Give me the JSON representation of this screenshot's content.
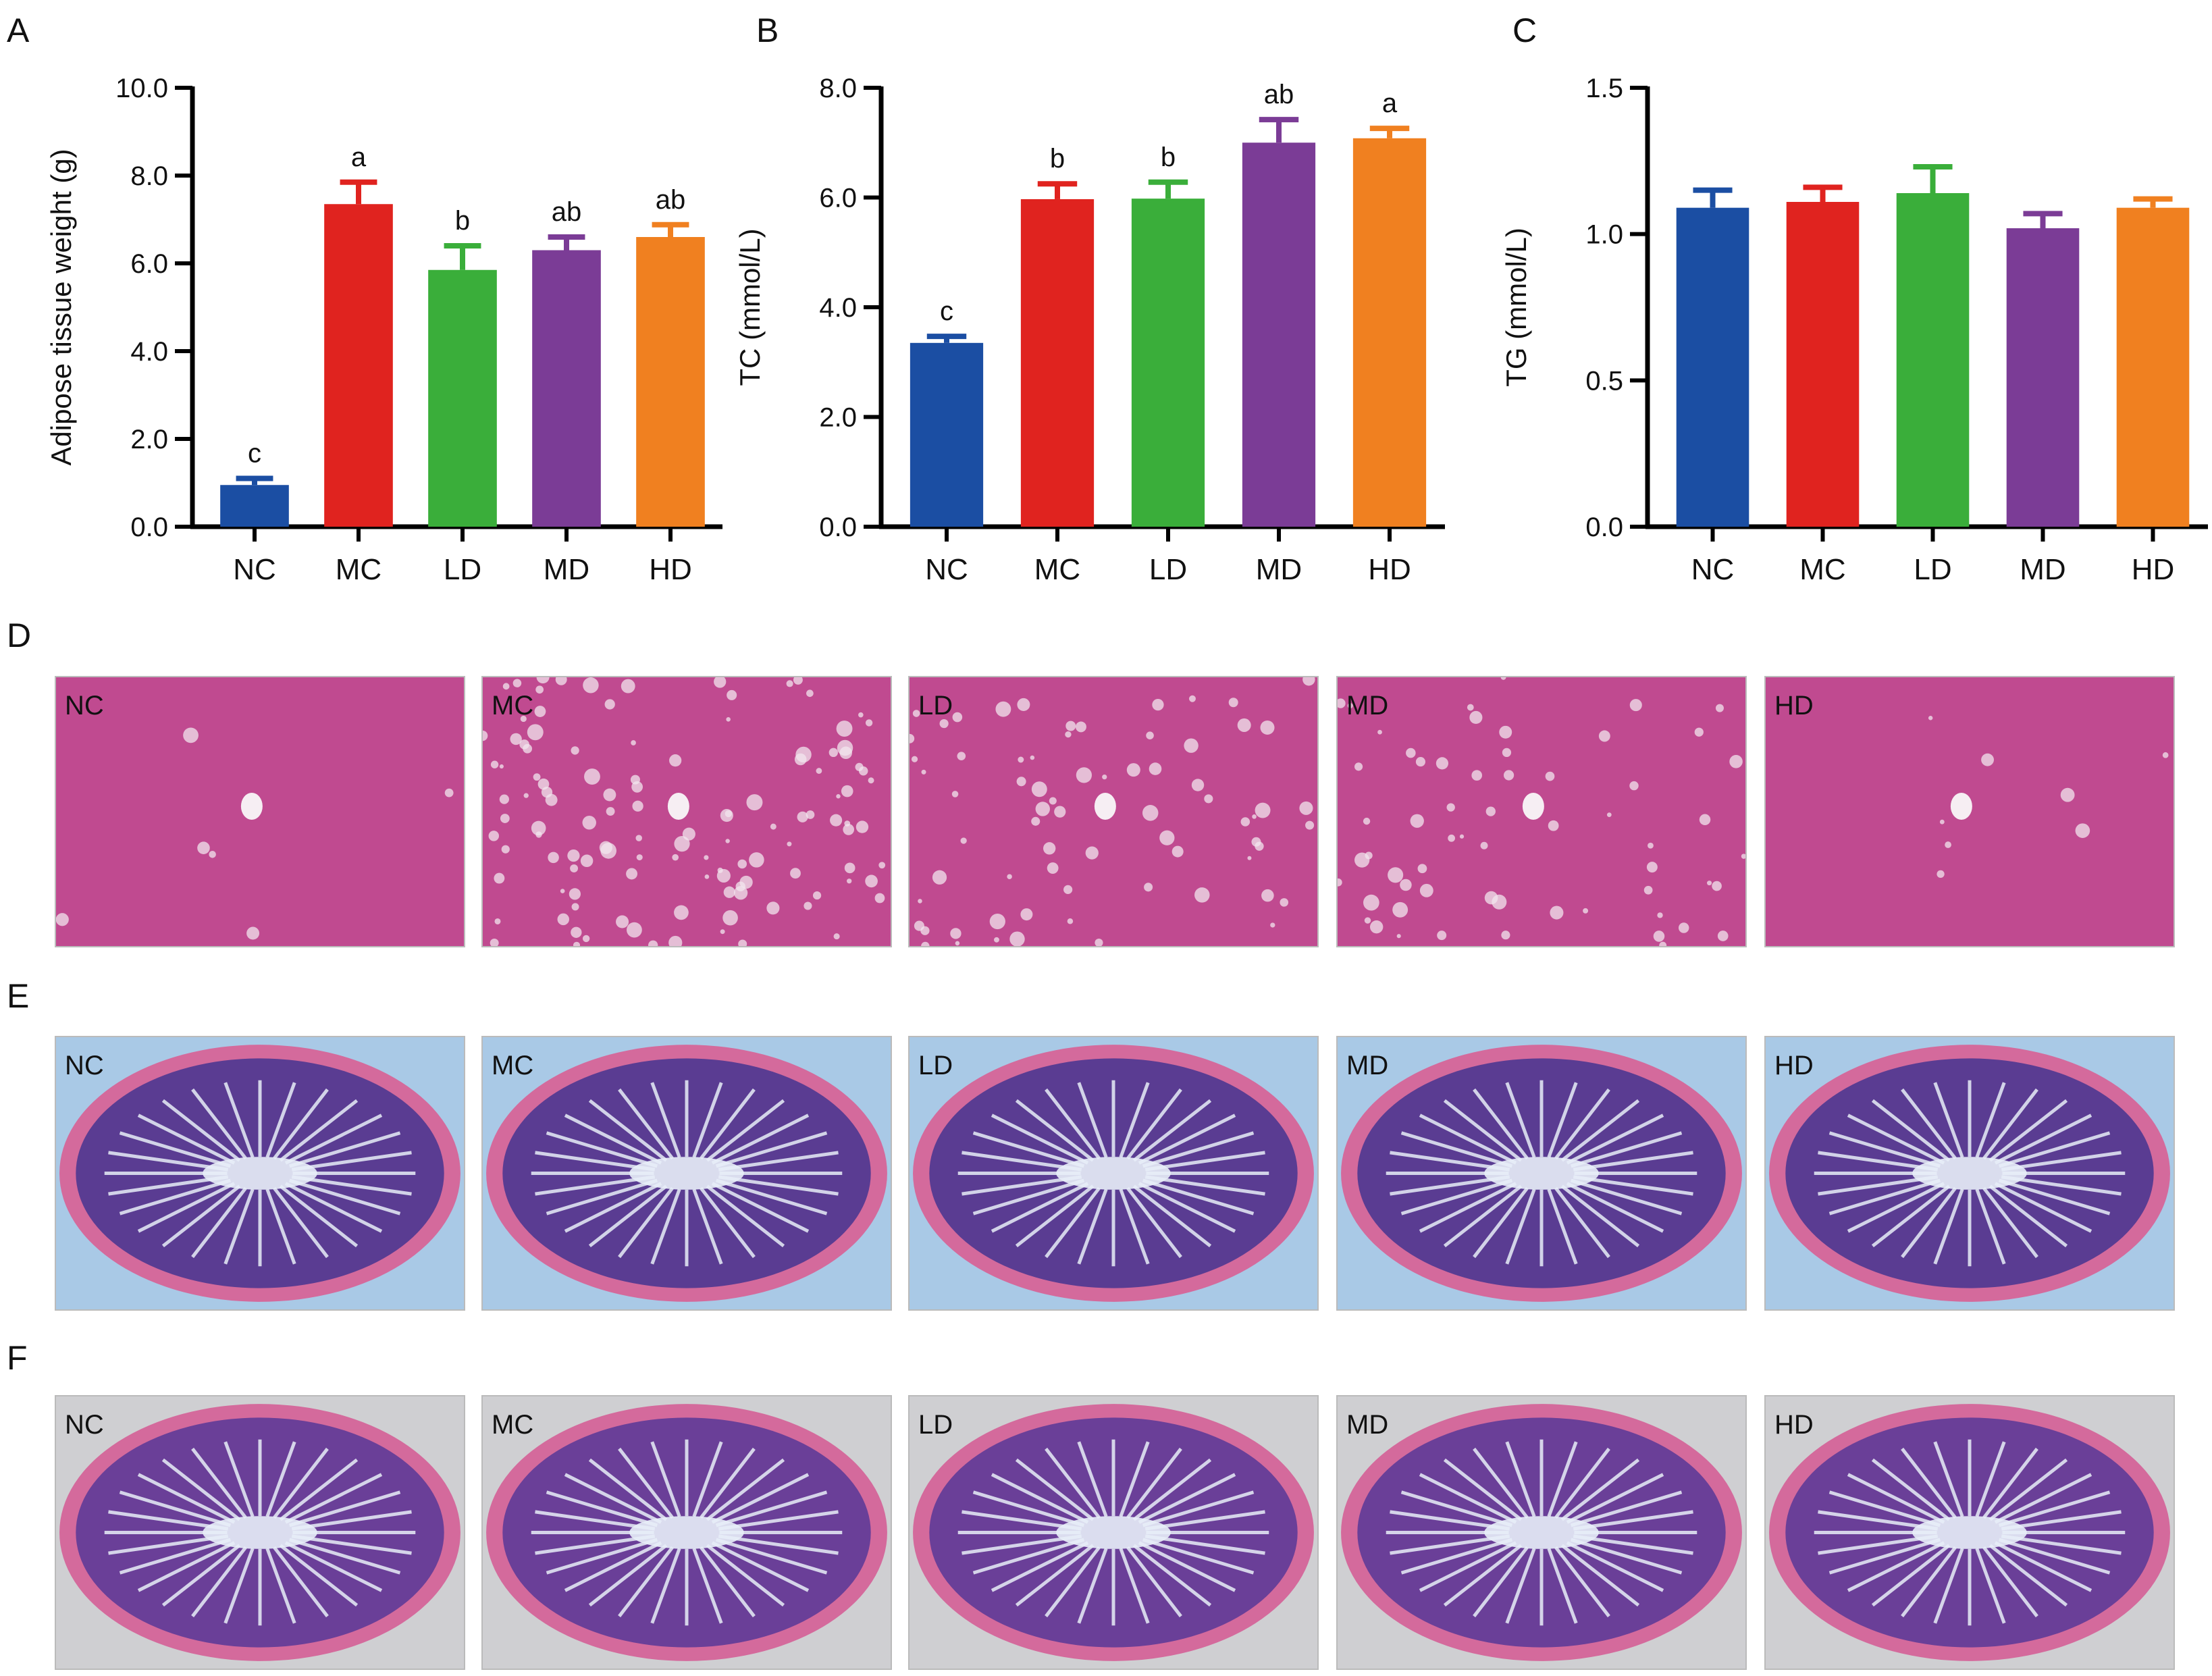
{
  "chart_data": [
    {
      "type": "bar",
      "panel": "A",
      "categories": [
        "NC",
        "MC",
        "LD",
        "MD",
        "HD"
      ],
      "values": [
        0.95,
        7.35,
        5.85,
        6.3,
        6.6
      ],
      "errors": [
        0.15,
        0.5,
        0.55,
        0.3,
        0.28
      ],
      "significance": [
        "c",
        "a",
        "b",
        "ab",
        "ab"
      ],
      "ylabel": "Adipose tissue weight (g)",
      "ylim": [
        0,
        10
      ],
      "yticks": [
        "0.0",
        "2.0",
        "4.0",
        "6.0",
        "8.0",
        "10.0"
      ],
      "colors": [
        "#1b4ea3",
        "#e0231f",
        "#3aae3a",
        "#7b3c96",
        "#f08020"
      ]
    },
    {
      "type": "bar",
      "panel": "B",
      "categories": [
        "NC",
        "MC",
        "LD",
        "MD",
        "HD"
      ],
      "values": [
        3.35,
        5.97,
        5.98,
        7.0,
        7.08
      ],
      "errors": [
        0.12,
        0.28,
        0.3,
        0.42,
        0.18
      ],
      "significance": [
        "c",
        "b",
        "b",
        "ab",
        "a"
      ],
      "ylabel": "TC (mmol/L)",
      "ylim": [
        0,
        8
      ],
      "yticks": [
        "0.0",
        "2.0",
        "4.0",
        "6.0",
        "8.0"
      ],
      "colors": [
        "#1b4ea3",
        "#e0231f",
        "#3aae3a",
        "#7b3c96",
        "#f08020"
      ]
    },
    {
      "type": "bar",
      "panel": "C",
      "categories": [
        "NC",
        "MC",
        "LD",
        "MD",
        "HD"
      ],
      "values": [
        1.09,
        1.11,
        1.14,
        1.02,
        1.09
      ],
      "errors": [
        0.06,
        0.05,
        0.09,
        0.05,
        0.03
      ],
      "significance": [
        "",
        "",
        "",
        "",
        ""
      ],
      "ylabel": "TG (mmol/L)",
      "ylim": [
        0,
        1.5
      ],
      "yticks": [
        "0.0",
        "0.5",
        "1.0",
        "1.5"
      ],
      "colors": [
        "#1b4ea3",
        "#e0231f",
        "#3aae3a",
        "#7b3c96",
        "#f08020"
      ]
    }
  ],
  "image_rows": [
    {
      "panel": "D",
      "tissue": "liver",
      "labels": [
        "NC",
        "MC",
        "LD",
        "MD",
        "HD"
      ],
      "bg": "#c04a90",
      "accent": "#f2e6ee"
    },
    {
      "panel": "E",
      "tissue": "ileum",
      "labels": [
        "NC",
        "MC",
        "LD",
        "MD",
        "HD"
      ],
      "bg": "#a9c9e6",
      "accent": "#5a3c92"
    },
    {
      "panel": "F",
      "tissue": "colon",
      "labels": [
        "NC",
        "MC",
        "LD",
        "MD",
        "HD"
      ],
      "bg": "#cfcfd2",
      "accent": "#6a3f98"
    }
  ]
}
